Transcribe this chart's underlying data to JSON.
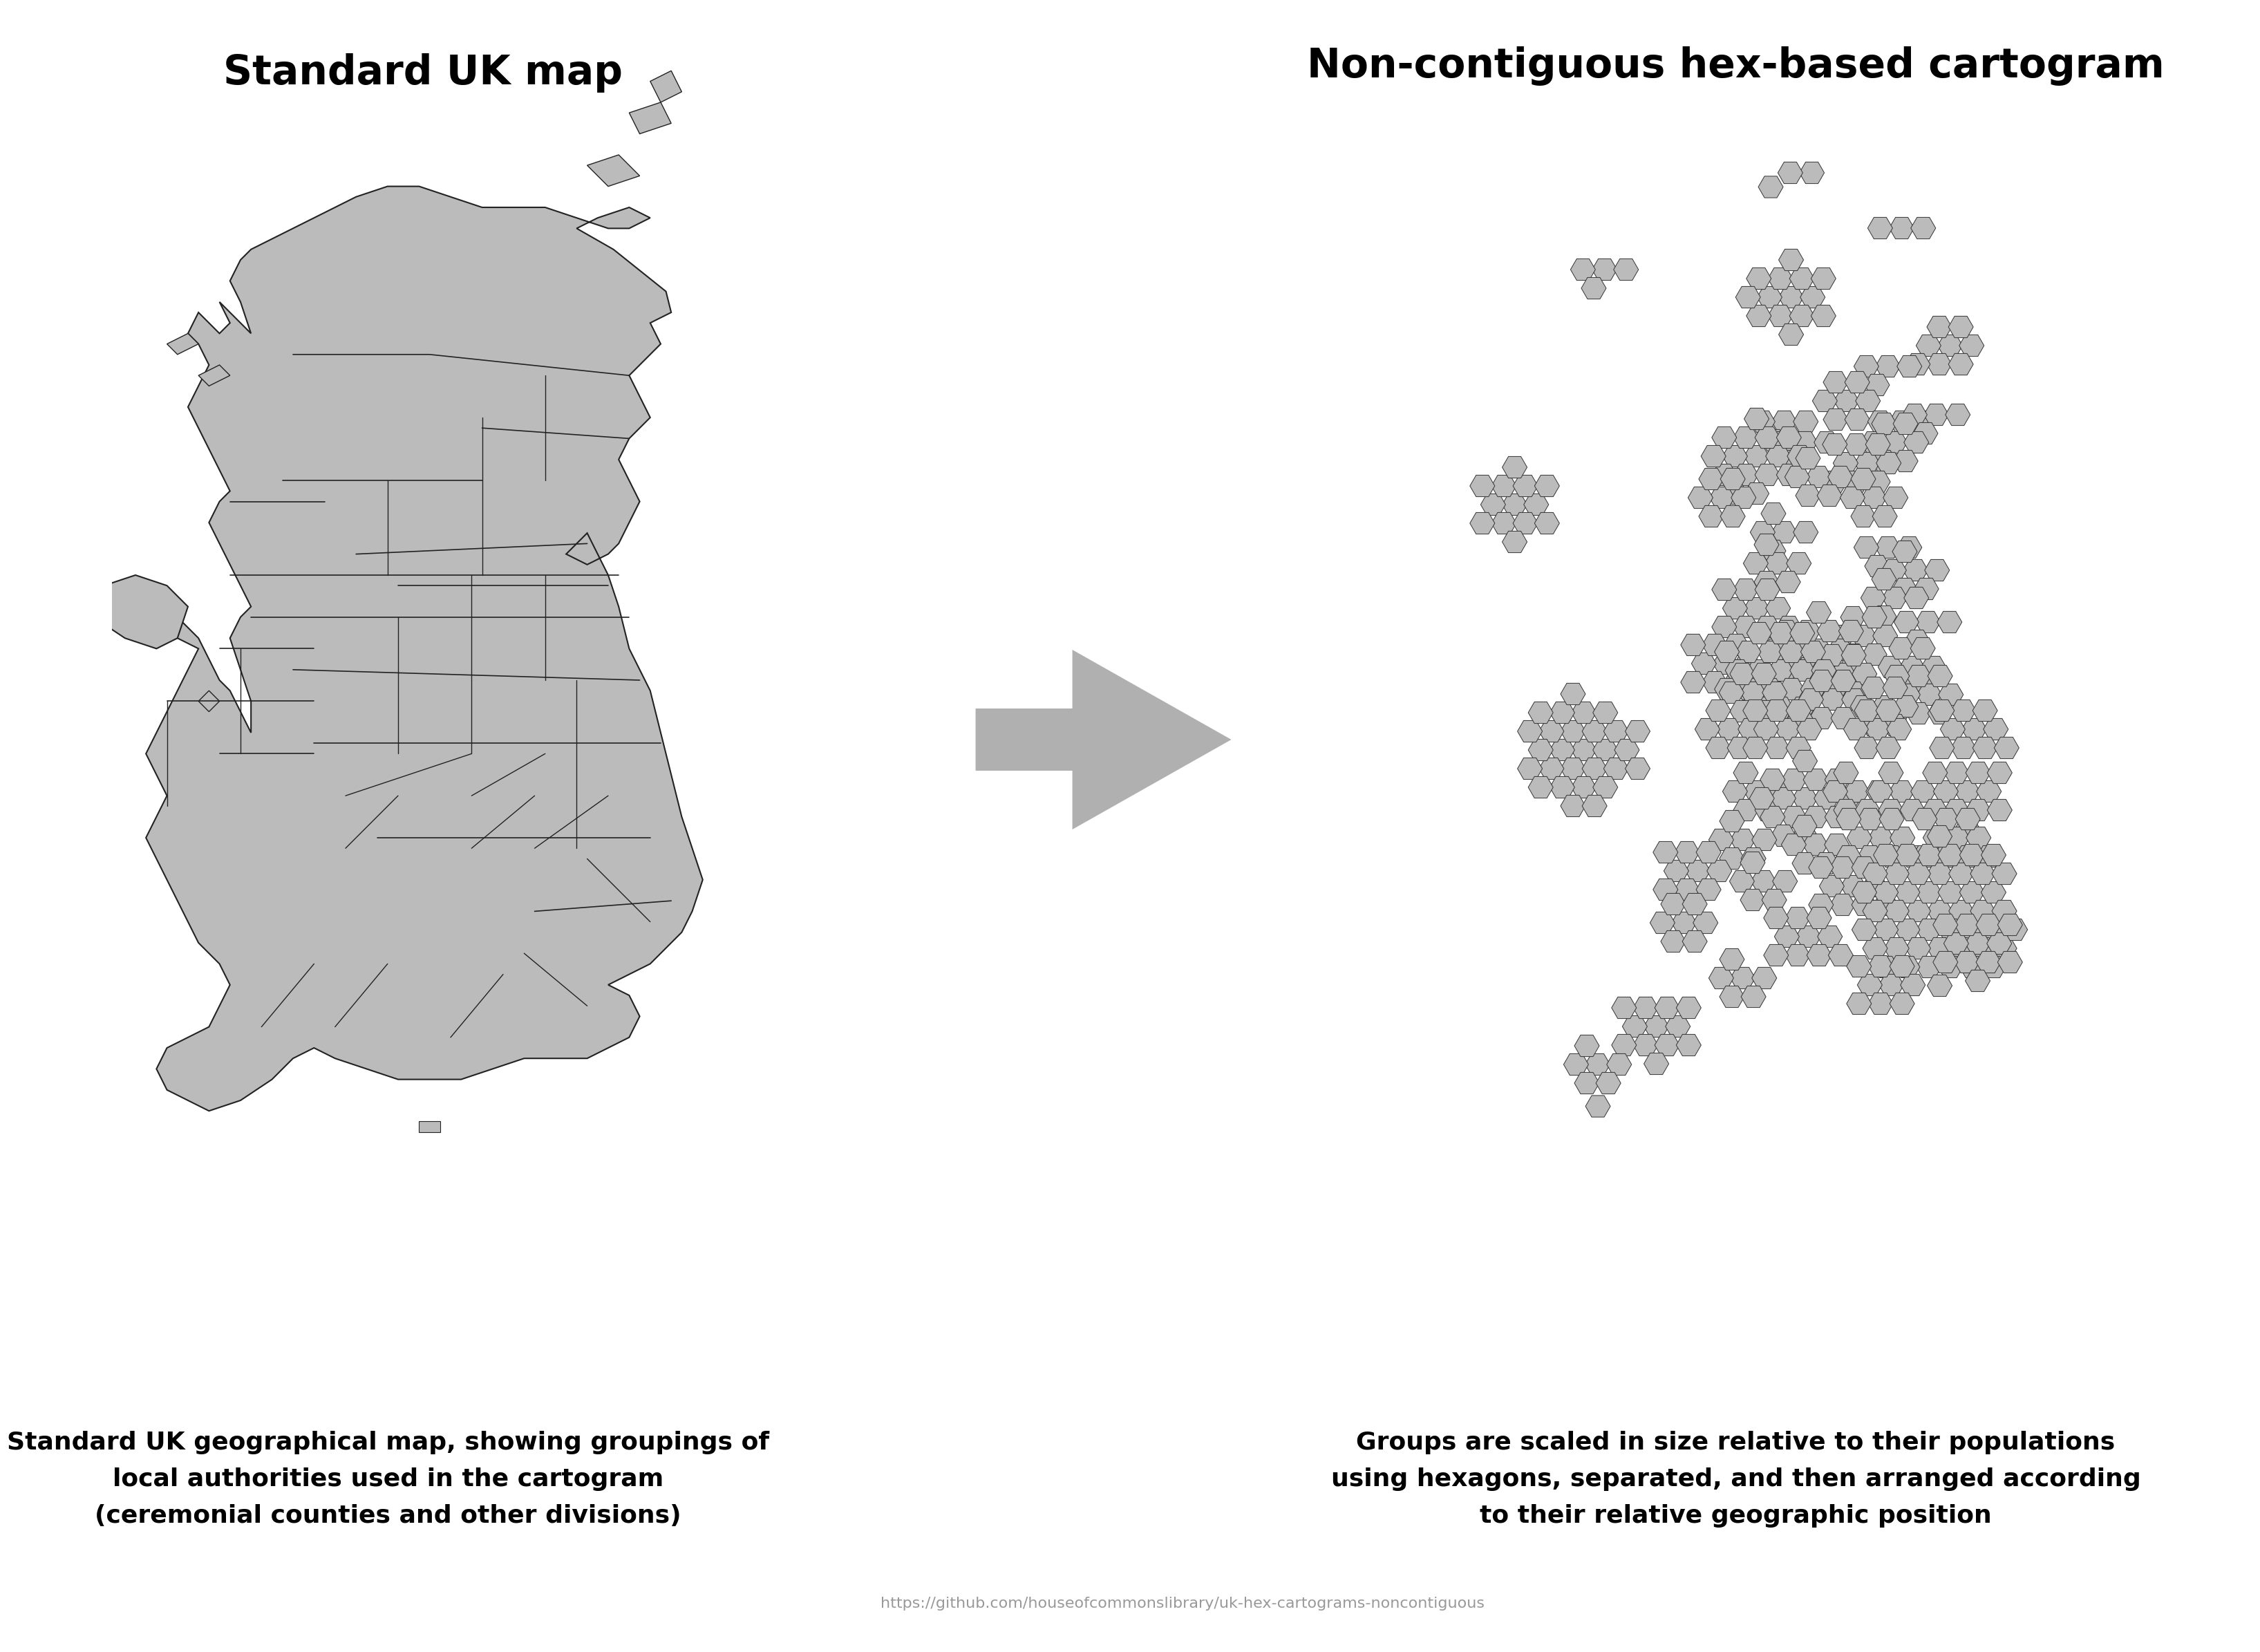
{
  "title_left": "Standard UK map",
  "title_right": "Non-contiguous hex-based cartogram",
  "caption_left": "Standard UK geographical map, showing groupings of\nlocal authorities used in the cartogram\n(ceremonial counties and other divisions)",
  "caption_right": "Groups are scaled in size relative to their populations\nusing hexagons, separated, and then arranged according\nto their relative geographic position",
  "url": "https://github.com/houseofcommonslibrary/uk-hex-cartograms-noncontiguous",
  "map_fill": "#bbbbbb",
  "map_edge": "#222222",
  "arrow_color": "#b0b0b0",
  "hex_fill": "#bbbbbb",
  "hex_edge": "#333333",
  "bg_color": "#ffffff",
  "title_fontsize": 42,
  "caption_fontsize": 26,
  "url_fontsize": 16
}
